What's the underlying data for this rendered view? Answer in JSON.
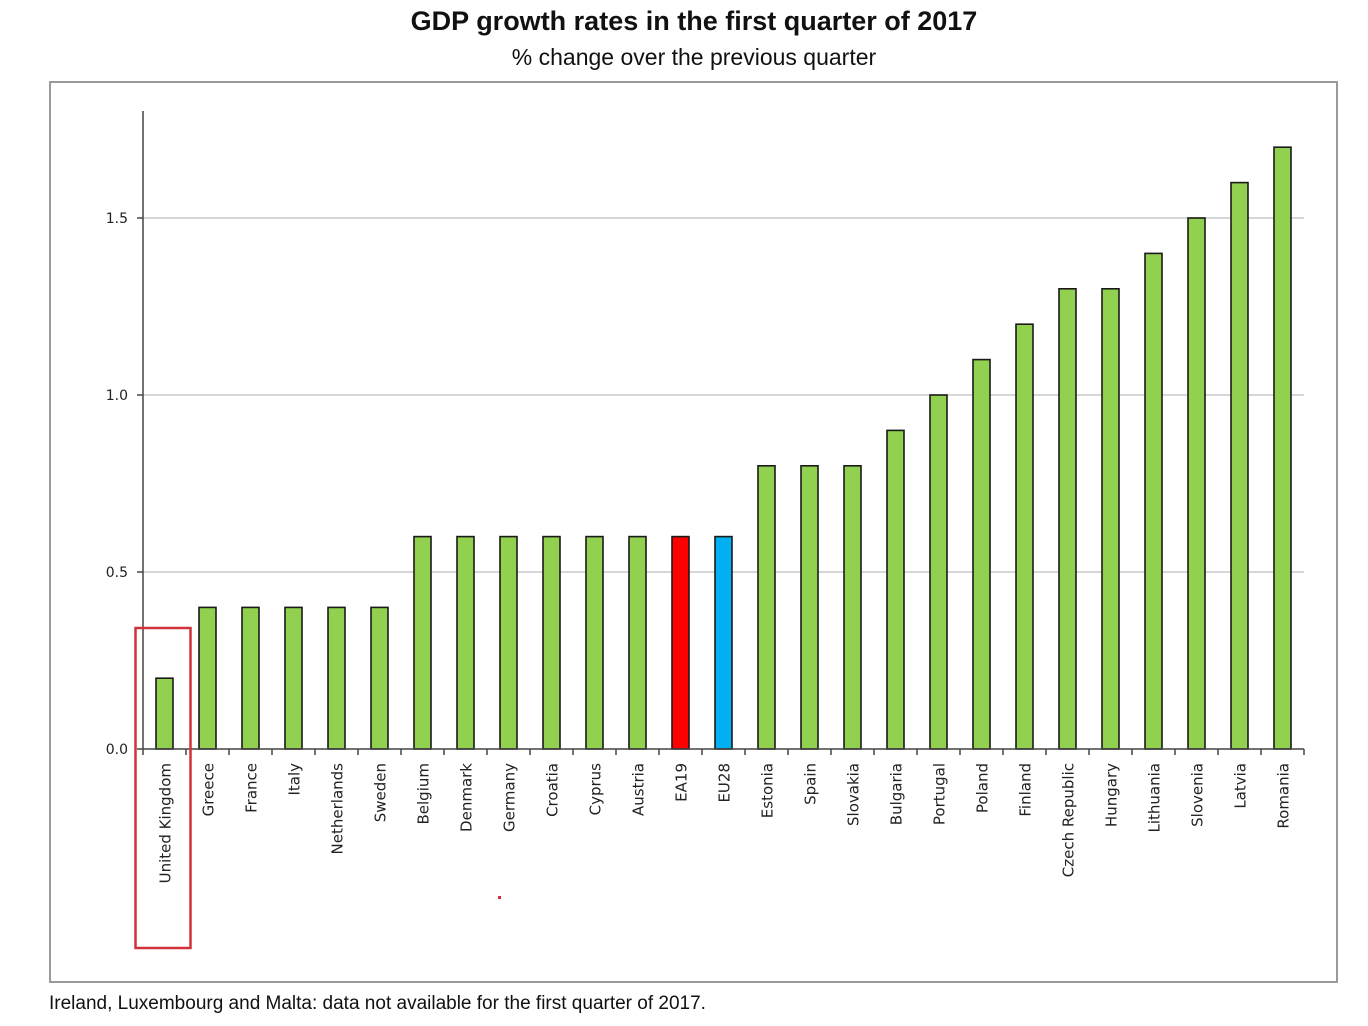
{
  "title": "GDP growth rates in the first quarter of 2017",
  "subtitle": "% change over the previous quarter",
  "footnote": "Ireland, Luxembourg and Malta: data not available for the first quarter of 2017.",
  "highlighted_category": "United Kingdom",
  "colors": {
    "default_bar": "#92d050",
    "bar_outline": "#1a1a1a",
    "EA19": "#ff0000",
    "EU28": "#00b0f0",
    "highlight_box": "#d0323a",
    "gridline": "#c8c8c8"
  },
  "chart_data": {
    "type": "bar",
    "categories": [
      "United Kingdom",
      "Greece",
      "France",
      "Italy",
      "Netherlands",
      "Sweden",
      "Belgium",
      "Denmark",
      "Germany",
      "Croatia",
      "Cyprus",
      "Austria",
      "EA19",
      "EU28",
      "Estonia",
      "Spain",
      "Slovakia",
      "Bulgaria",
      "Portugal",
      "Poland",
      "Finland",
      "Czech Republic",
      "Hungary",
      "Lithuania",
      "Slovenia",
      "Latvia",
      "Romania"
    ],
    "values": [
      0.2,
      0.4,
      0.4,
      0.4,
      0.4,
      0.4,
      0.6,
      0.6,
      0.6,
      0.6,
      0.6,
      0.6,
      0.6,
      0.6,
      0.8,
      0.8,
      0.8,
      0.9,
      1.0,
      1.1,
      1.2,
      1.3,
      1.3,
      1.4,
      1.5,
      1.6,
      1.7
    ],
    "ylim": [
      0,
      1.8
    ],
    "yticks": [
      0.0,
      0.5,
      1.0,
      1.5
    ],
    "ytick_labels": [
      "0.0",
      "0.5",
      "1.0",
      "1.5"
    ],
    "grid": true,
    "xlabel": "",
    "ylabel": ""
  }
}
